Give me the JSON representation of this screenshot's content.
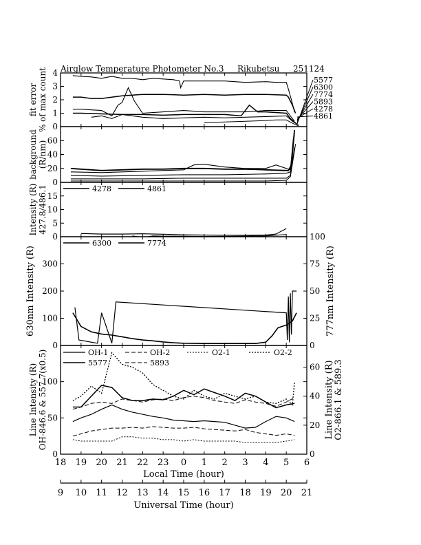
{
  "header": {
    "title": "Airglow Temperature Photometer No.3",
    "station": "Rikubetsu",
    "date": "251124"
  },
  "chart_data": [
    {
      "type": "line",
      "panel": "fit-error",
      "ylabel": [
        "fit error",
        "% of max count"
      ],
      "ylim": [
        0,
        4
      ],
      "yticks": [
        "0",
        "1",
        "2",
        "3",
        "4"
      ],
      "legend": [
        "5577",
        "6300",
        "7774",
        "5893",
        "4278",
        "4861"
      ],
      "series": [
        {
          "name": "5577",
          "x": [
            18.6,
            19,
            19.5,
            20,
            20.5,
            21,
            21.5,
            22,
            22.5,
            23,
            23.5,
            23.8,
            23.85,
            24,
            25,
            26,
            27,
            28,
            28.5,
            29,
            29.1,
            29.25,
            29.4
          ],
          "y": [
            3.8,
            3.75,
            3.7,
            3.6,
            3.75,
            3.6,
            3.6,
            3.5,
            3.6,
            3.55,
            3.5,
            3.4,
            2.9,
            3.4,
            3.4,
            3.4,
            3.3,
            3.35,
            3.3,
            3.3,
            2.8,
            2.0,
            1.1
          ],
          "width": 1.1
        },
        {
          "name": "6300",
          "x": [
            18.6,
            19,
            19.5,
            20,
            21,
            22,
            23,
            24,
            25,
            26,
            27,
            28,
            29,
            29.1,
            29.3,
            29.45
          ],
          "y": [
            2.2,
            2.2,
            2.1,
            2.1,
            2.3,
            2.4,
            2.4,
            2.35,
            2.4,
            2.35,
            2.4,
            2.4,
            2.35,
            2.2,
            1.6,
            1.0
          ],
          "width": 1.5
        },
        {
          "name": "7774",
          "x": [
            18.6,
            19,
            20,
            20.5,
            20.8,
            21,
            21.3,
            21.6,
            22,
            23,
            24,
            25,
            26,
            27,
            28,
            29,
            29.2,
            29.4
          ],
          "y": [
            1.3,
            1.3,
            1.2,
            0.8,
            1.6,
            1.8,
            2.9,
            1.9,
            1.0,
            1.1,
            1.2,
            1.1,
            1.1,
            1.1,
            1.2,
            1.2,
            0.8,
            0.4
          ],
          "width": 1.1
        },
        {
          "name": "5893",
          "x": [
            18.6,
            19,
            20,
            21,
            22,
            23,
            24,
            25,
            26,
            26.8,
            27.2,
            27.6,
            28,
            29,
            29.2,
            29.5
          ],
          "y": [
            1.0,
            1.0,
            0.95,
            0.9,
            0.9,
            0.85,
            0.9,
            0.9,
            0.9,
            0.8,
            1.6,
            1.1,
            1.1,
            1.0,
            0.6,
            0.2
          ],
          "width": 1.5
        },
        {
          "name": "4278",
          "x": [
            19.5,
            20,
            20.5,
            21,
            22,
            23,
            24,
            25,
            26,
            27,
            28,
            29,
            29.3,
            29.6
          ],
          "y": [
            0.7,
            0.8,
            0.6,
            0.9,
            0.7,
            0.6,
            0.65,
            0.7,
            0.65,
            0.7,
            0.75,
            0.8,
            0.4,
            0.1
          ],
          "width": 1.1
        },
        {
          "name": "4861",
          "x": [
            25,
            26,
            27,
            28,
            28.5,
            29,
            29.3,
            29.6
          ],
          "y": [
            0.3,
            0.35,
            0.4,
            0.45,
            0.5,
            0.5,
            0.25,
            0.05
          ],
          "width": 1.0
        }
      ]
    },
    {
      "type": "line",
      "panel": "background",
      "ylabel": [
        "background",
        "(R/nm)"
      ],
      "ylim": [
        0,
        80
      ],
      "yticks": [
        "0",
        "20",
        "40",
        "60"
      ],
      "series": [
        {
          "x": [
            18.5,
            19,
            20,
            21,
            22,
            23,
            24,
            25,
            26,
            27,
            28,
            29,
            29.1,
            29.25,
            29.4
          ],
          "y": [
            20,
            19,
            17,
            18,
            19,
            19,
            20,
            20,
            19,
            19,
            18,
            17,
            17,
            25,
            75
          ],
          "width": 1.8
        },
        {
          "x": [
            18.5,
            20,
            22,
            24,
            24.5,
            25,
            26,
            27,
            28,
            28.5,
            29,
            29.2,
            29.35
          ],
          "y": [
            15,
            14,
            16,
            18,
            25,
            26,
            22,
            20,
            20,
            25,
            20,
            18,
            65
          ],
          "width": 1.1
        },
        {
          "x": [
            18.5,
            20,
            22,
            24,
            26,
            28,
            29,
            29.2,
            29.4
          ],
          "y": [
            10,
            9,
            10,
            11,
            11,
            12,
            13,
            15,
            70
          ],
          "width": 1.1
        },
        {
          "x": [
            18.5,
            20,
            22,
            24,
            26,
            28,
            29,
            29.2,
            29.4
          ],
          "y": [
            5,
            5,
            5,
            6,
            6,
            6,
            6,
            10,
            50
          ],
          "width": 1.1
        },
        {
          "x": [
            18.5,
            20,
            22,
            24,
            26,
            28,
            29,
            29.2,
            29.45
          ],
          "y": [
            2,
            2,
            2,
            2,
            2,
            2,
            3,
            8,
            55
          ],
          "width": 1.1
        }
      ]
    },
    {
      "type": "line",
      "panel": "intensity-427-486",
      "ylabel": [
        "Intensity (R)",
        "427.8/486.1"
      ],
      "ylim": [
        0,
        20
      ],
      "yticks": [
        "0",
        "5",
        "10",
        "15"
      ],
      "legend": [
        "4278",
        "4861"
      ],
      "series": [
        {
          "name": "4278",
          "x": [
            19,
            20,
            21,
            22,
            23,
            24,
            25,
            26,
            27,
            28,
            28.5,
            29
          ],
          "y": [
            1.2,
            1.0,
            1.0,
            1.1,
            0.9,
            0.7,
            0.6,
            0.5,
            0.5,
            0.6,
            1.0,
            3.0
          ],
          "width": 1.2
        },
        {
          "name": "4861",
          "x": [
            21.5,
            22,
            22.5,
            23,
            24,
            25,
            26,
            27,
            28,
            29
          ],
          "y": [
            0.3,
            -0.3,
            0.3,
            0.2,
            0.2,
            0.1,
            0.1,
            0.2,
            0.3,
            0.8
          ],
          "width": 1.2
        }
      ]
    },
    {
      "type": "line",
      "panel": "630-777",
      "ylabel": "630nm Intensity (R)",
      "ylabel_right": "777nm Intensity (R)",
      "ylim": [
        0,
        400
      ],
      "ylim_right": [
        0,
        100
      ],
      "yticks": [
        "0",
        "100",
        "200",
        "300"
      ],
      "yticks_right": [
        "0",
        "25",
        "50",
        "75",
        "100"
      ],
      "legend": [
        "6300",
        "7774"
      ],
      "series": [
        {
          "name": "6300",
          "x": [
            18.6,
            19,
            19.5,
            20,
            20.5,
            21,
            21.5,
            22,
            22.5,
            23,
            23.5,
            24,
            25,
            26,
            27,
            27.5,
            28,
            28.3,
            28.6,
            29,
            29.3,
            29.5
          ],
          "y": [
            120,
            70,
            50,
            42,
            38,
            32,
            25,
            20,
            17,
            13,
            10,
            8,
            7,
            7,
            7,
            7,
            12,
            35,
            65,
            75,
            90,
            120
          ],
          "width": 1.6
        },
        {
          "name": "7774",
          "x": [
            18.7,
            18.9,
            19.8,
            20.0,
            20.5,
            20.7,
            29.0,
            29.05,
            29.1,
            29.15,
            29.2,
            29.25,
            29.3,
            29.5
          ],
          "y": [
            35,
            5,
            2,
            30,
            2,
            40,
            30,
            5,
            45,
            3,
            48,
            10,
            50,
            50
          ],
          "width": 1.2
        }
      ]
    },
    {
      "type": "line",
      "panel": "line-intensity",
      "ylabel": [
        "Line Intensity (R)",
        "OH-846.6 & 557.7(x0.5)"
      ],
      "ylabel_right": [
        "Line Intensity (R)",
        "O2-866.1 & 589.3"
      ],
      "ylim": [
        0,
        150
      ],
      "ylim_right": [
        0,
        75
      ],
      "yticks": [
        "0",
        "50",
        "100"
      ],
      "yticks_right": [
        "0",
        "20",
        "40",
        "60"
      ],
      "xlabel": "Local Time (hour)",
      "xlim": [
        18,
        30
      ],
      "xticks": [
        "18",
        "19",
        "20",
        "21",
        "22",
        "23",
        "0",
        "1",
        "2",
        "3",
        "4",
        "5",
        "6"
      ],
      "x2label": "Universal Time (hour)",
      "x2ticks": [
        "9",
        "10",
        "11",
        "12",
        "13",
        "14",
        "15",
        "16",
        "17",
        "18",
        "19",
        "20",
        "21"
      ],
      "legend": [
        "OH-1",
        "OH-2",
        "O2-1",
        "O2-2",
        "5577",
        "5893"
      ],
      "series": [
        {
          "name": "OH-1",
          "x": [
            18.6,
            19,
            19.5,
            20,
            20.5,
            21,
            21.5,
            22,
            22.5,
            23,
            23.5,
            24,
            24.5,
            25,
            25.5,
            26,
            26.5,
            27,
            27.5,
            28,
            28.5,
            29,
            29.4
          ],
          "y": [
            45,
            50,
            55,
            62,
            68,
            62,
            58,
            55,
            52,
            50,
            47,
            46,
            45,
            46,
            45,
            44,
            40,
            36,
            37,
            45,
            52,
            50,
            45
          ],
          "width": 1.2,
          "dash": ""
        },
        {
          "name": "OH-2",
          "x": [
            18.6,
            19,
            19.5,
            20,
            20.5,
            21,
            21.5,
            22,
            22.5,
            23,
            23.5,
            24,
            24.5,
            25,
            25.5,
            26,
            26.5,
            27,
            27.5,
            28,
            28.5,
            29,
            29.4
          ],
          "y": [
            62,
            65,
            70,
            72,
            70,
            76,
            74,
            72,
            75,
            76,
            74,
            78,
            80,
            78,
            74,
            72,
            70,
            75,
            72,
            70,
            66,
            72,
            78
          ],
          "width": 1.0,
          "dash": "6,3"
        },
        {
          "name": "O2-1",
          "x": [
            18.6,
            19,
            19.5,
            20,
            20.5,
            21,
            21.5,
            22,
            22.5,
            23,
            23.5,
            24,
            24.5,
            25,
            25.5,
            26,
            26.5,
            27,
            27.5,
            28,
            28.5,
            29,
            29.4
          ],
          "y": [
            10,
            9,
            9,
            9,
            9,
            12,
            12,
            11,
            11,
            10,
            10,
            9,
            10,
            9,
            9,
            9,
            9,
            8,
            8,
            8,
            8,
            9,
            10
          ],
          "width": 1.0,
          "dash": "2,2"
        },
        {
          "name": "O2-2",
          "x": [
            18.6,
            19,
            19.5,
            20,
            20.5,
            21,
            21.5,
            22,
            22.5,
            23,
            23.5,
            24,
            24.5,
            25,
            25.5,
            26,
            26.5,
            27,
            27.5,
            28,
            28.5,
            29,
            29.3,
            29.4
          ],
          "y": [
            37,
            40,
            47,
            42,
            70,
            62,
            60,
            56,
            48,
            44,
            40,
            38,
            44,
            40,
            38,
            42,
            40,
            38,
            40,
            36,
            35,
            38,
            34,
            50
          ],
          "width": 1.3,
          "dash": "2,2"
        },
        {
          "name": "5577",
          "x": [
            18.6,
            19,
            19.5,
            20,
            20.5,
            21,
            21.5,
            22,
            22.5,
            23,
            23.5,
            24,
            24.5,
            25,
            25.5,
            26,
            26.5,
            27,
            27.5,
            28,
            28.5,
            29,
            29.4
          ],
          "y": [
            65,
            65,
            80,
            95,
            92,
            78,
            74,
            74,
            76,
            75,
            80,
            88,
            82,
            90,
            85,
            80,
            74,
            84,
            80,
            72,
            64,
            68,
            70
          ],
          "width": 1.5,
          "dash": ""
        },
        {
          "name": "5893",
          "x": [
            18.6,
            19,
            19.5,
            20,
            20.5,
            21,
            21.5,
            22,
            22.5,
            23,
            23.5,
            24,
            24.5,
            25,
            25.5,
            26,
            26.5,
            27,
            27.5,
            28,
            28.5,
            29,
            29.4
          ],
          "y": [
            25,
            28,
            32,
            34,
            36,
            36,
            37,
            36,
            38,
            37,
            36,
            36,
            37,
            35,
            34,
            33,
            32,
            34,
            30,
            28,
            26,
            28,
            26
          ],
          "width": 1.0,
          "dash": "6,3"
        }
      ]
    }
  ]
}
